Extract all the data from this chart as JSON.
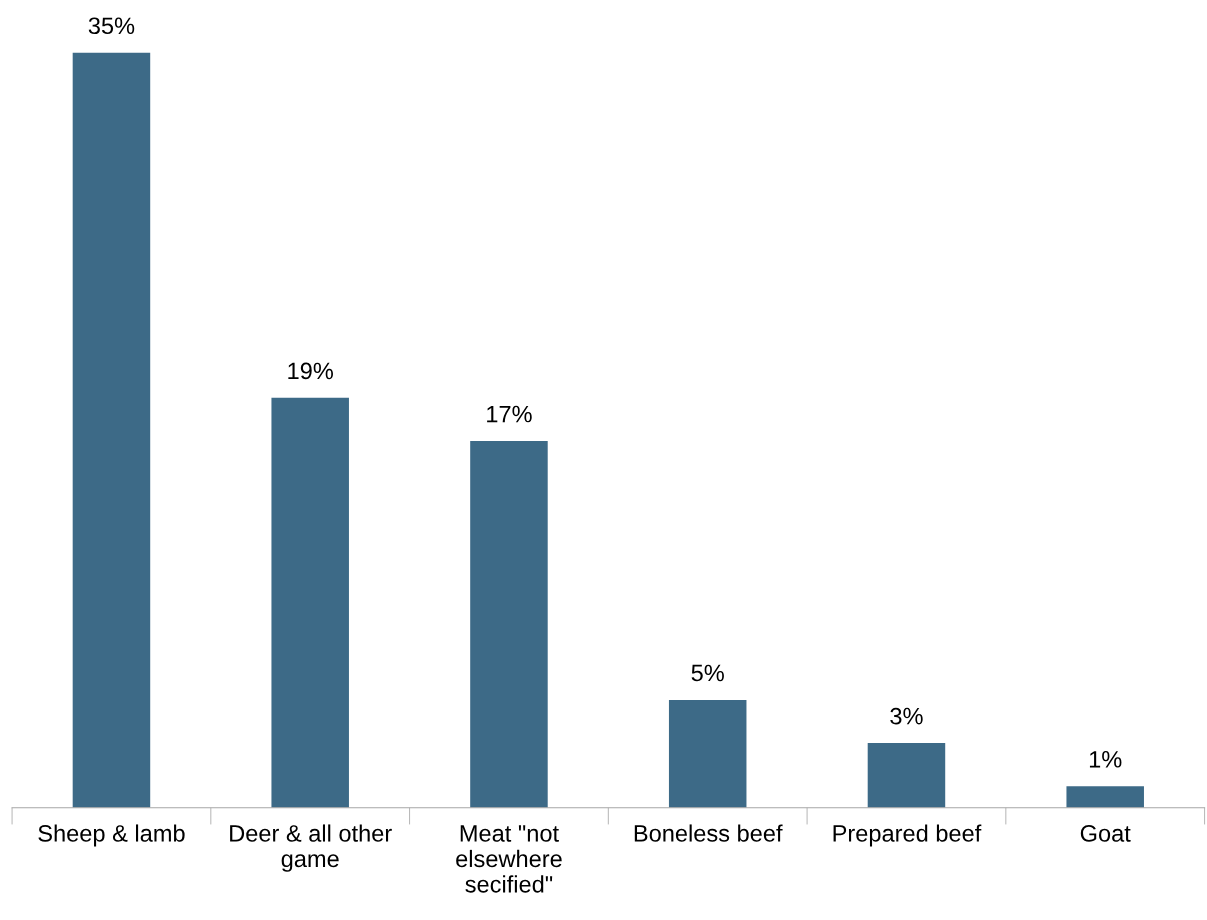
{
  "chart_data": {
    "type": "bar",
    "categories": [
      "Sheep & lamb",
      "Deer & all other\ngame",
      "Meat \"not\nelsewhere\nsecified\"",
      "Boneless beef",
      "Prepared beef",
      "Goat"
    ],
    "values": [
      35,
      19,
      17,
      5,
      3,
      1
    ],
    "value_labels": [
      "35%",
      "19%",
      "17%",
      "5%",
      "3%",
      "1%"
    ],
    "color": "#3d6a87",
    "grid": false,
    "legend": false
  }
}
